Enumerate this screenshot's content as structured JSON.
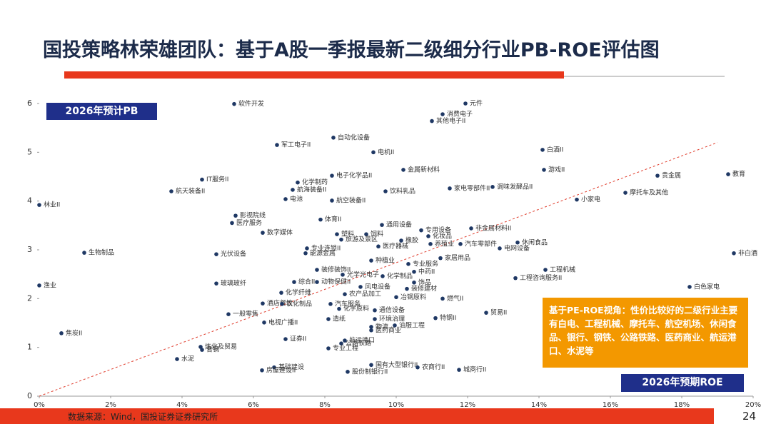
{
  "title": "国投策略林荣雄团队：基于A股一季报最新二级细分行业PB-ROE评估图",
  "chart_data": {
    "type": "scatter",
    "color": "#1f3864",
    "y_axis_label": "2026年预计PB",
    "x_axis_label": "2026年预期ROE",
    "xlim": [
      0,
      20
    ],
    "ylim": [
      0,
      6
    ],
    "xticks": [
      {
        "value": 0,
        "label": "0%"
      },
      {
        "value": 2,
        "label": "2%"
      },
      {
        "value": 4,
        "label": "4%"
      },
      {
        "value": 6,
        "label": "6%"
      },
      {
        "value": 8,
        "label": "8%"
      },
      {
        "value": 10,
        "label": "10%"
      },
      {
        "value": 12,
        "label": "12%"
      },
      {
        "value": 14,
        "label": "14%"
      },
      {
        "value": 16,
        "label": "16%"
      },
      {
        "value": 18,
        "label": "18%"
      },
      {
        "value": 20,
        "label": "20%"
      }
    ],
    "yticks": [
      0,
      1,
      2,
      3,
      4,
      5,
      6
    ],
    "trend_line": {
      "x": [
        0,
        19
      ],
      "y": [
        0,
        5.2
      ],
      "color": "#e03c2c"
    },
    "labels": [
      "软件开发",
      "自动化设备",
      "消费电子",
      "其他电子II",
      "元件",
      "军工电子II",
      "电机II",
      "白酒II",
      "游戏II",
      "金属新材料",
      "贵金属",
      "教育",
      "IT服务II",
      "化学制药",
      "电子化学品II",
      "航天装备II",
      "航海装备II",
      "饮料乳品",
      "家电零部件II",
      "调味发酵品II",
      "电池",
      "航空装备II",
      "小家电",
      "摩托车及其他",
      "林业II",
      "影视院线",
      "体育II",
      "医疗服务",
      "通用设备",
      "专用设备",
      "非金属材料II",
      "数字媒体",
      "塑料",
      "饲料",
      "化妆品",
      "旅游及景区",
      "橡胶",
      "养殖业",
      "汽车零部件",
      "休闲食品",
      "医疗器械",
      "专业连锁II",
      "电网设备",
      "能源金属",
      "光伏设备",
      "生物制品",
      "非白酒",
      "种植业",
      "家居用品",
      "专业服务",
      "工程机械",
      "工程咨询服务II",
      "装修装饰II",
      "光学光电子",
      "化学制品",
      "中药II",
      "综合II",
      "动物保健II",
      "玻璃玻纤",
      "饰品",
      "风电设备",
      "装修建材",
      "白色家电",
      "化学纤维",
      "农产品加工",
      "冶钢原料",
      "燃气II",
      "渔业",
      "酒店餐饮",
      "农化制品",
      "汽车服务",
      "化学原料",
      "通信设备",
      "一般零售",
      "电视广播II",
      "造纸",
      "特钢II",
      "贸易II",
      "环境治理",
      "物流",
      "油服工程",
      "焦炭II",
      "医药商业",
      "证券II",
      "航运港口",
      "公路铁路",
      "专业工程",
      "炼化及贸易",
      "普钢",
      "水泥",
      "国有大型银行II",
      "基础建设",
      "房屋建设II",
      "股份制银行II",
      "农商行II",
      "城商行II"
    ],
    "x": [
      5.46,
      8.24,
      11.3,
      11.0,
      11.94,
      6.66,
      9.36,
      14.1,
      14.14,
      10.2,
      17.32,
      19.3,
      4.56,
      7.24,
      8.2,
      3.7,
      7.1,
      9.7,
      11.5,
      12.7,
      6.9,
      8.2,
      15.06,
      16.42,
      0,
      5.5,
      7.88,
      5.4,
      9.6,
      10.7,
      12.1,
      6.26,
      8.34,
      9.16,
      10.9,
      8.46,
      10.14,
      10.96,
      11.8,
      13.4,
      9.5,
      7.5,
      12.9,
      7.46,
      4.96,
      1.26,
      19.46,
      9.3,
      11.24,
      10.34,
      14.18,
      13.34,
      7.78,
      8.5,
      9.62,
      10.5,
      7.14,
      7.78,
      4.96,
      10.5,
      9.0,
      10.3,
      18.22,
      6.78,
      8.56,
      10.0,
      11.3,
      0,
      6.26,
      6.8,
      8.16,
      8.4,
      9.4,
      5.3,
      6.3,
      8.1,
      11.1,
      12.52,
      9.4,
      9.3,
      9.96,
      0.62,
      9.3,
      6.9,
      8.56,
      8.46,
      8.1,
      4.52,
      4.56,
      3.86,
      9.3,
      6.58,
      6.24,
      8.64,
      10.6,
      11.76
    ],
    "values": [
      5.99,
      5.3,
      5.78,
      5.64,
      6.0,
      5.15,
      5.0,
      5.05,
      4.64,
      4.64,
      4.52,
      4.55,
      4.44,
      4.38,
      4.52,
      4.2,
      4.23,
      4.2,
      4.26,
      4.29,
      4.04,
      4.01,
      4.03,
      4.17,
      3.92,
      3.7,
      3.62,
      3.55,
      3.51,
      3.4,
      3.44,
      3.35,
      3.32,
      3.32,
      3.28,
      3.21,
      3.19,
      3.12,
      3.12,
      3.15,
      3.07,
      3.03,
      3.03,
      2.93,
      2.91,
      2.94,
      2.93,
      2.78,
      2.83,
      2.71,
      2.59,
      2.42,
      2.59,
      2.49,
      2.46,
      2.55,
      2.34,
      2.34,
      2.31,
      2.33,
      2.24,
      2.2,
      2.24,
      2.12,
      2.09,
      2.03,
      2.0,
      2.27,
      1.9,
      1.89,
      1.89,
      1.79,
      1.76,
      1.68,
      1.51,
      1.58,
      1.6,
      1.71,
      1.58,
      1.42,
      1.45,
      1.29,
      1.35,
      1.17,
      1.14,
      1.08,
      0.98,
      1.01,
      0.95,
      0.76,
      0.64,
      0.59,
      0.53,
      0.5,
      0.59,
      0.54
    ]
  },
  "callout": "基于PE-ROE视角：性价比较好的二级行业主要有白电、工程机械、摩托车、航空机场、休闲食品、银行、钢铁、公路铁路、医药商业、航运港口、水泥等",
  "source": "数据来源：Wind，国投证券证券研究所",
  "page_number": "24"
}
